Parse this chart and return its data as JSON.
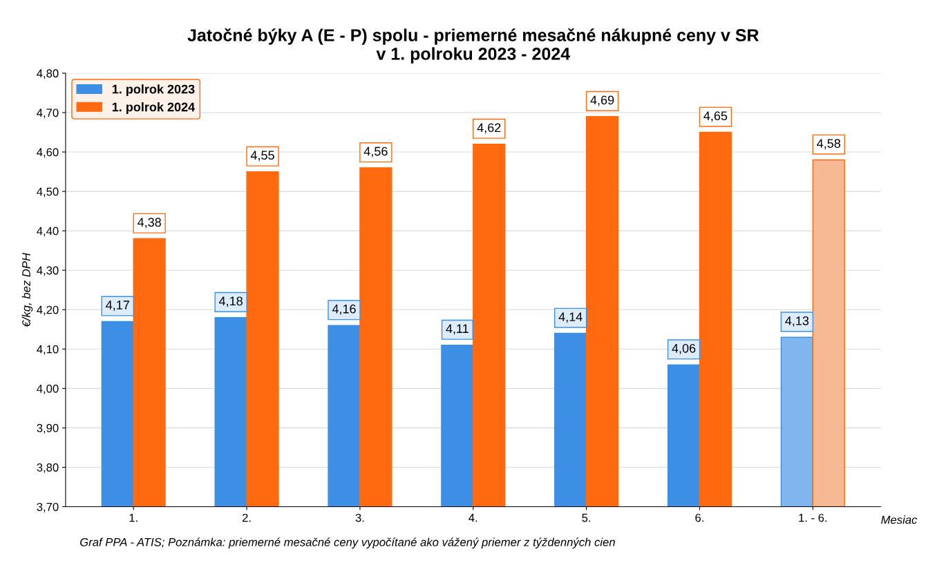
{
  "chart_data": {
    "type": "bar",
    "title": "Jatočné býky A (E - P) spolu - priemerné mesačné nákupné ceny v SR\nv 1. polroku 2023 - 2024",
    "xlabel": "Mesiac",
    "ylabel": "€/kg, bez DPH",
    "categories": [
      "1.",
      "2.",
      "3.",
      "4.",
      "5.",
      "6.",
      "1. - 6."
    ],
    "series": [
      {
        "name": "1. polrok 2023",
        "color": "#3d8fe6",
        "colors": [
          "#3d8fe6",
          "#3d8fe6",
          "#3d8fe6",
          "#3d8fe6",
          "#3d8fe6",
          "#3d8fe6",
          "#7fb6ee"
        ],
        "values": [
          4.17,
          4.18,
          4.16,
          4.11,
          4.14,
          4.06,
          4.13
        ],
        "value_labels": [
          "4,17",
          "4,18",
          "4,16",
          "4,11",
          "4,14",
          "4,06",
          "4,13"
        ]
      },
      {
        "name": "1. polrok 2024",
        "color": "#ff6a10",
        "colors": [
          "#ff6a10",
          "#ff6a10",
          "#ff6a10",
          "#ff6a10",
          "#ff6a10",
          "#ff6a10",
          "#f7b894"
        ],
        "values": [
          4.38,
          4.55,
          4.56,
          4.62,
          4.69,
          4.65,
          4.58
        ],
        "value_labels": [
          "4,38",
          "4,55",
          "4,56",
          "4,62",
          "4,69",
          "4,65",
          "4,58"
        ]
      }
    ],
    "ylim": [
      3.7,
      4.8
    ],
    "yticks": [
      {
        "value": 3.7,
        "label": "3,70"
      },
      {
        "value": 3.8,
        "label": "3,80"
      },
      {
        "value": 3.9,
        "label": "3,90"
      },
      {
        "value": 4.0,
        "label": "4,00"
      },
      {
        "value": 4.1,
        "label": "4,10"
      },
      {
        "value": 4.2,
        "label": "4,20"
      },
      {
        "value": 4.3,
        "label": "4,30"
      },
      {
        "value": 4.4,
        "label": "4,40"
      },
      {
        "value": 4.5,
        "label": "4,50"
      },
      {
        "value": 4.6,
        "label": "4,60"
      },
      {
        "value": 4.7,
        "label": "4,70"
      },
      {
        "value": 4.8,
        "label": "4,80"
      }
    ],
    "grid": "y",
    "legend": "top left",
    "annotations": [
      "Graf PPA - ATIS; Poznámka: priemerné mesačné ceny vypočítané ako vážený priemer z týždenných cien"
    ]
  }
}
